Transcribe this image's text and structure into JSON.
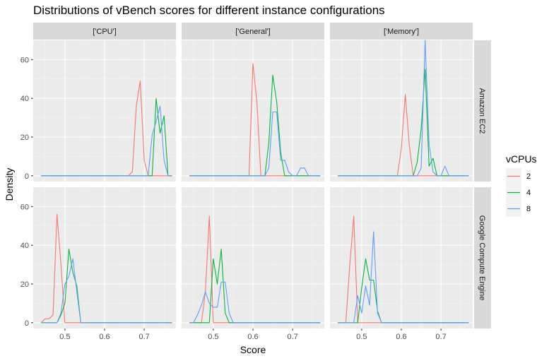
{
  "chart_data": {
    "type": "line",
    "title": "Distributions of vBench scores for different instance configurations",
    "xlabel": "Score",
    "ylabel": "Density",
    "xlim": [
      0.42,
      0.78
    ],
    "ylim": [
      -3,
      70
    ],
    "x_ticks": [
      0.5,
      0.6,
      0.7
    ],
    "x_tick_labels": [
      "0.5",
      "0.6",
      "0.7"
    ],
    "y_ticks": [
      0,
      20,
      40,
      60
    ],
    "y_tick_labels": [
      "0",
      "20",
      "40",
      "60"
    ],
    "grid": true,
    "columns": [
      "['CPU']",
      "['General']",
      "['Memory']"
    ],
    "rows": [
      "Amazon EC2",
      "Google Compute Engine"
    ],
    "legend": {
      "title": "vCPUs",
      "position": "right",
      "entries": [
        {
          "label": "2",
          "color": "#F8766D"
        },
        {
          "label": "4",
          "color": "#00BA38"
        },
        {
          "label": "8",
          "color": "#619CFF"
        }
      ]
    },
    "panels": [
      {
        "row": "Amazon EC2",
        "column": "['CPU']",
        "series": [
          {
            "name": "2",
            "x": [
              0.44,
              0.66,
              0.67,
              0.68,
              0.69,
              0.7,
              0.71,
              0.72,
              0.77
            ],
            "y": [
              0,
              0,
              2,
              36,
              49,
              8,
              0,
              0,
              0
            ]
          },
          {
            "name": "4",
            "x": [
              0.44,
              0.71,
              0.72,
              0.73,
              0.74,
              0.75,
              0.76,
              0.77
            ],
            "y": [
              0,
              0,
              0,
              40,
              22,
              31,
              0,
              0
            ]
          },
          {
            "name": "8",
            "x": [
              0.44,
              0.71,
              0.72,
              0.73,
              0.74,
              0.75,
              0.76,
              0.77
            ],
            "y": [
              0,
              0,
              21,
              28,
              36,
              8,
              0,
              0
            ]
          }
        ]
      },
      {
        "row": "Amazon EC2",
        "column": "['General']",
        "series": [
          {
            "name": "2",
            "x": [
              0.44,
              0.59,
              0.6,
              0.61,
              0.62,
              0.63,
              0.77
            ],
            "y": [
              0,
              0,
              58,
              38,
              0,
              0,
              0
            ]
          },
          {
            "name": "4",
            "x": [
              0.44,
              0.63,
              0.64,
              0.65,
              0.66,
              0.67,
              0.68,
              0.69,
              0.77
            ],
            "y": [
              0,
              0,
              17,
              52,
              38,
              12,
              0,
              0,
              0
            ]
          },
          {
            "name": "8",
            "x": [
              0.44,
              0.63,
              0.64,
              0.65,
              0.66,
              0.67,
              0.68,
              0.69,
              0.7,
              0.71,
              0.72,
              0.73,
              0.74,
              0.77
            ],
            "y": [
              0,
              0,
              4,
              33,
              33,
              8,
              8,
              2,
              0,
              0,
              4,
              4,
              0,
              0
            ]
          }
        ]
      },
      {
        "row": "Amazon EC2",
        "column": "['Memory']",
        "series": [
          {
            "name": "2",
            "x": [
              0.44,
              0.59,
              0.6,
              0.61,
              0.62,
              0.63,
              0.77
            ],
            "y": [
              0,
              0,
              14,
              42,
              16,
              0,
              0
            ]
          },
          {
            "name": "4",
            "x": [
              0.44,
              0.63,
              0.64,
              0.65,
              0.66,
              0.67,
              0.68,
              0.69,
              0.77
            ],
            "y": [
              0,
              0,
              7,
              24,
              55,
              5,
              9,
              0,
              0
            ]
          },
          {
            "name": "8",
            "x": [
              0.44,
              0.64,
              0.65,
              0.66,
              0.67,
              0.68,
              0.69,
              0.7,
              0.71,
              0.72,
              0.77
            ],
            "y": [
              0,
              0,
              4,
              70,
              16,
              2,
              0,
              0,
              5,
              0,
              0
            ]
          }
        ]
      },
      {
        "row": "Google Compute Engine",
        "column": "['CPU']",
        "series": [
          {
            "name": "2",
            "x": [
              0.44,
              0.45,
              0.46,
              0.47,
              0.48,
              0.49,
              0.5,
              0.51,
              0.77
            ],
            "y": [
              0,
              2,
              2,
              4,
              56,
              30,
              0,
              0,
              0
            ]
          },
          {
            "name": "4",
            "x": [
              0.44,
              0.48,
              0.49,
              0.5,
              0.51,
              0.52,
              0.53,
              0.54,
              0.77
            ],
            "y": [
              0,
              0,
              4,
              10,
              38,
              26,
              19,
              0,
              0
            ]
          },
          {
            "name": "8",
            "x": [
              0.44,
              0.48,
              0.49,
              0.5,
              0.51,
              0.52,
              0.53,
              0.54,
              0.77
            ],
            "y": [
              0,
              0,
              5,
              20,
              24,
              33,
              16,
              0,
              0
            ]
          }
        ]
      },
      {
        "row": "Google Compute Engine",
        "column": "['General']",
        "series": [
          {
            "name": "2",
            "x": [
              0.44,
              0.47,
              0.48,
              0.49,
              0.5,
              0.51,
              0.77
            ],
            "y": [
              0,
              0,
              16,
              55,
              0,
              0,
              0
            ]
          },
          {
            "name": "4",
            "x": [
              0.44,
              0.48,
              0.49,
              0.5,
              0.51,
              0.52,
              0.53,
              0.54,
              0.77
            ],
            "y": [
              0,
              0,
              0,
              33,
              20,
              38,
              5,
              0,
              0
            ]
          },
          {
            "name": "8",
            "x": [
              0.44,
              0.45,
              0.46,
              0.47,
              0.48,
              0.49,
              0.5,
              0.51,
              0.52,
              0.53,
              0.54,
              0.55,
              0.77
            ],
            "y": [
              0,
              0,
              4,
              9,
              16,
              10,
              8,
              8,
              21,
              21,
              5,
              0,
              0
            ]
          }
        ]
      },
      {
        "row": "Google Compute Engine",
        "column": "['Memory']",
        "series": [
          {
            "name": "2",
            "x": [
              0.44,
              0.46,
              0.47,
              0.48,
              0.49,
              0.5,
              0.77
            ],
            "y": [
              0,
              0,
              30,
              55,
              0,
              0,
              0
            ]
          },
          {
            "name": "4",
            "x": [
              0.44,
              0.48,
              0.49,
              0.5,
              0.51,
              0.52,
              0.53,
              0.54,
              0.55,
              0.77
            ],
            "y": [
              0,
              0,
              0,
              18,
              33,
              22,
              22,
              6,
              0,
              0
            ]
          },
          {
            "name": "8",
            "x": [
              0.44,
              0.47,
              0.48,
              0.49,
              0.5,
              0.51,
              0.52,
              0.53,
              0.54,
              0.55,
              0.77
            ],
            "y": [
              0,
              0,
              0,
              14,
              5,
              19,
              9,
              47,
              5,
              0,
              0
            ]
          }
        ]
      }
    ]
  }
}
